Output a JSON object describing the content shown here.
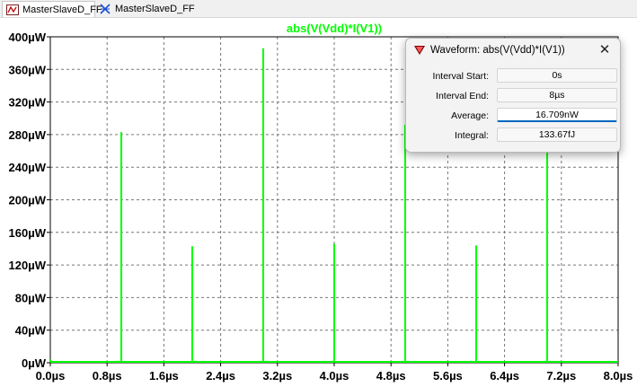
{
  "tabs": [
    {
      "label": "MasterSlaveD_FF",
      "icon": "schematic-icon",
      "active": true
    },
    {
      "label": "MasterSlaveD_FF",
      "icon": "waveform-icon",
      "active": false
    }
  ],
  "plot": {
    "trace_label": "abs(V(Vdd)*I(V1))",
    "trace_color": "#00ff00"
  },
  "chart_data": {
    "type": "line",
    "title": "abs(V(Vdd)*I(V1))",
    "xlim": [
      0,
      8.0
    ],
    "ylim": [
      0,
      400
    ],
    "x_unit": "µs",
    "y_unit": "µW",
    "x_ticks": [
      "0.0µs",
      "0.8µs",
      "1.6µs",
      "2.4µs",
      "3.2µs",
      "4.0µs",
      "4.8µs",
      "5.6µs",
      "6.4µs",
      "7.2µs",
      "8.0µs"
    ],
    "y_ticks": [
      "0µW",
      "40µW",
      "80µW",
      "120µW",
      "160µW",
      "200µW",
      "240µW",
      "280µW",
      "320µW",
      "360µW",
      "400µW"
    ],
    "grid": true,
    "series": [
      {
        "name": "abs(V(Vdd)*I(V1))",
        "color": "#00ff00",
        "spikes": [
          {
            "x": 0.0,
            "y": 4
          },
          {
            "x": 1.0,
            "y": 283
          },
          {
            "x": 2.0,
            "y": 143
          },
          {
            "x": 3.0,
            "y": 386
          },
          {
            "x": 4.0,
            "y": 146
          },
          {
            "x": 5.0,
            "y": 292
          },
          {
            "x": 6.0,
            "y": 144
          },
          {
            "x": 7.0,
            "y": 300
          }
        ]
      }
    ]
  },
  "dialog": {
    "title": "Waveform: abs(V(Vdd)*I(V1))",
    "close": "✕",
    "fields": [
      {
        "label": "Interval Start:",
        "value": "0s"
      },
      {
        "label": "Interval End:",
        "value": "8µs"
      },
      {
        "label": "Average:",
        "value": "16.709nW"
      },
      {
        "label": "Integral:",
        "value": "133.67fJ"
      }
    ]
  }
}
